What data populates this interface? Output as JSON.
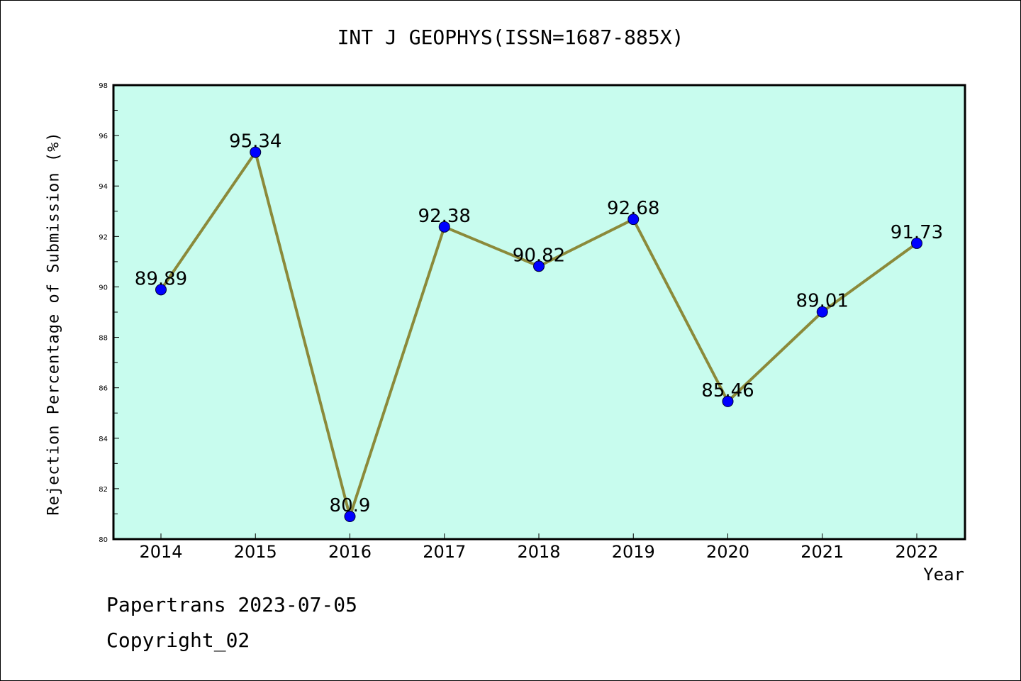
{
  "chart_data": {
    "type": "line",
    "title": "INT J GEOPHYS(ISSN=1687-885X)",
    "xlabel": "Year",
    "ylabel": "Rejection Percentage of Submission (%)",
    "categories": [
      "2014",
      "2015",
      "2016",
      "2017",
      "2018",
      "2019",
      "2020",
      "2021",
      "2022"
    ],
    "series": [
      {
        "values": [
          89.89,
          95.34,
          80.9,
          92.38,
          90.82,
          92.68,
          85.46,
          89.01,
          91.73
        ],
        "labels": [
          "89.89",
          "95.34",
          "80.9",
          "92.38",
          "90.82",
          "92.68",
          "85.46",
          "89.01",
          "91.73"
        ]
      }
    ],
    "ylim": [
      80,
      98
    ],
    "yticks": [
      "80",
      "82",
      "84",
      "86",
      "88",
      "90",
      "92",
      "94",
      "96",
      "98"
    ],
    "grid": false,
    "colors": {
      "plot_background": "#c8fcee",
      "line": "#8b8a3a",
      "marker": "#0000ff"
    }
  },
  "footer": {
    "line1": "Papertrans 2023-07-05",
    "line2": "Copyright_02"
  }
}
